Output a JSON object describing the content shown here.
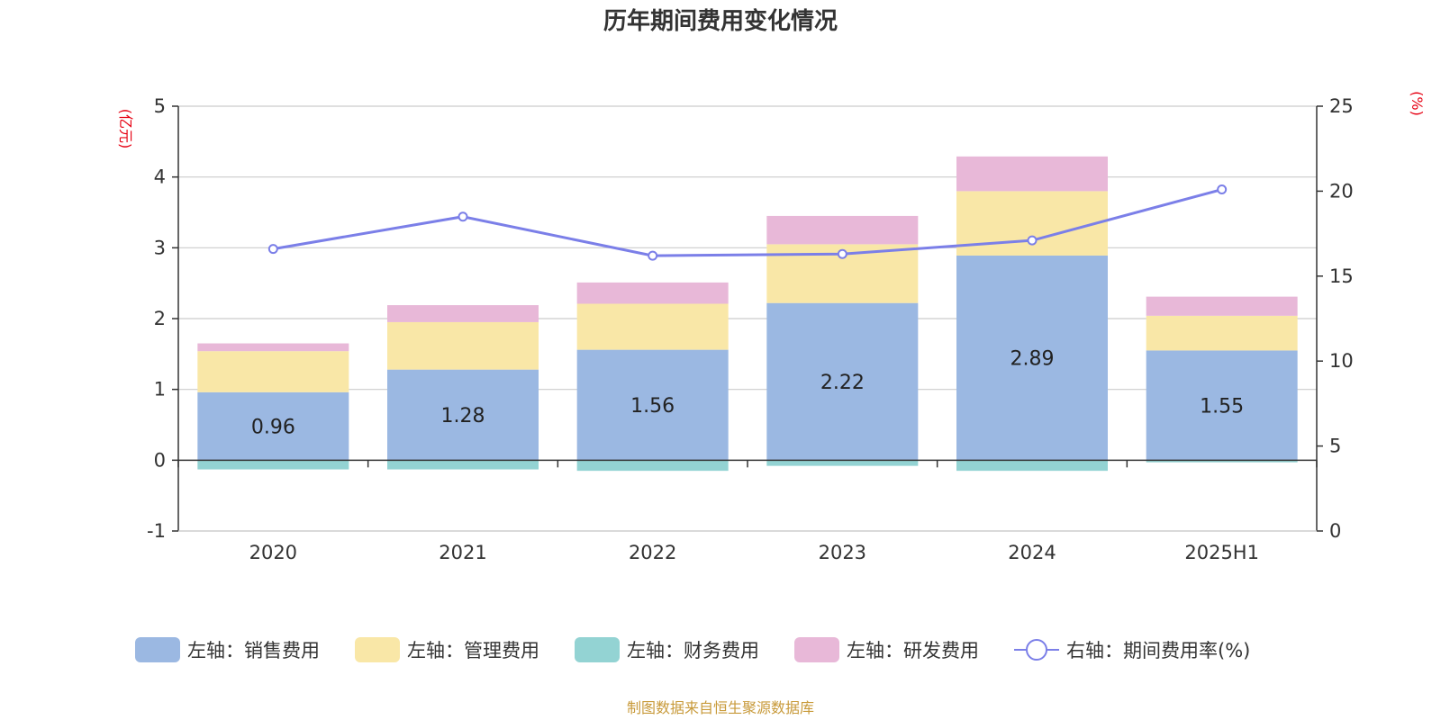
{
  "chart_data": {
    "type": "bar",
    "title": "历年期间费用变化情况",
    "categories": [
      "2020",
      "2021",
      "2022",
      "2023",
      "2024",
      "2025H1"
    ],
    "left_axis": {
      "unit": "(亿元)",
      "ylim": [
        -1,
        5
      ],
      "ticks": [
        "-1",
        "0",
        "1",
        "2",
        "3",
        "4",
        "5"
      ]
    },
    "right_axis": {
      "unit": "(%)",
      "ylim": [
        0,
        25
      ],
      "ticks": [
        "0",
        "5",
        "10",
        "15",
        "20",
        "25"
      ]
    },
    "series": [
      {
        "name": "左轴：销售费用",
        "axis": "left",
        "stack": "total",
        "color": "#9bb8e2",
        "values": [
          0.96,
          1.28,
          1.56,
          2.22,
          2.89,
          1.55
        ],
        "labels": [
          "0.96",
          "1.28",
          "1.56",
          "2.22",
          "2.89",
          "1.55"
        ]
      },
      {
        "name": "左轴：管理费用",
        "axis": "left",
        "stack": "total",
        "color": "#f9e7a7",
        "values": [
          0.58,
          0.67,
          0.65,
          0.83,
          0.91,
          0.49
        ]
      },
      {
        "name": "左轴：财务费用",
        "axis": "left",
        "stack": "total",
        "color": "#93d3d3",
        "values": [
          -0.13,
          -0.13,
          -0.15,
          -0.08,
          -0.15,
          -0.03
        ]
      },
      {
        "name": "左轴：研发费用",
        "axis": "left",
        "stack": "total",
        "color": "#e8b8d8",
        "values": [
          0.11,
          0.24,
          0.3,
          0.4,
          0.49,
          0.27
        ]
      },
      {
        "name": "右轴：期间费用率(%)",
        "axis": "right",
        "type": "line",
        "color": "#7b7fe8",
        "values": [
          16.6,
          18.5,
          16.2,
          16.3,
          17.1,
          20.1
        ]
      }
    ],
    "grid": true,
    "legend_position": "bottom"
  },
  "source": "制图数据来自恒生聚源数据库"
}
